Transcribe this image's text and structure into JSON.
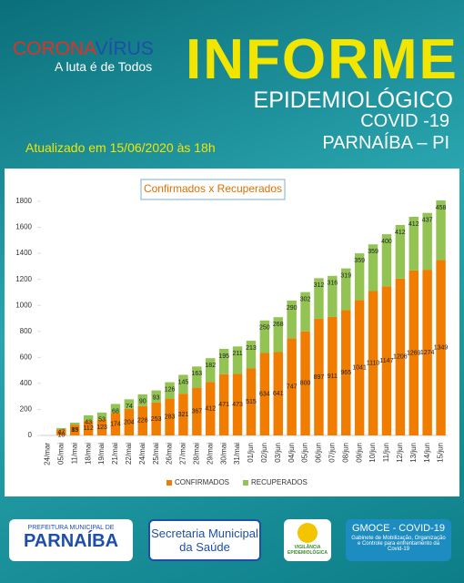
{
  "header": {
    "brand_parts": [
      "CORONA",
      "VÍRUS"
    ],
    "slogan": "A luta é de Todos",
    "title": "INFORME",
    "subtitle": "EPIDEMIOLÓGICO",
    "disease": "COVID -19",
    "place": "PARNAÍBA – PI",
    "updated": "Atualizado em 15/06/2020 às 18h"
  },
  "chart_data": {
    "type": "stacked_bar",
    "title": "Confirmados x Recuperados",
    "categories": [
      "24/mar",
      "05/mai",
      "11/mai",
      "18/mai",
      "19/mai",
      "21/mai",
      "22/mai",
      "24/mai",
      "25/mai",
      "26/mai",
      "27/mai",
      "28/mai",
      "29/mai",
      "30/mai",
      "31/mai",
      "01/jun",
      "02/jun",
      "03/jun",
      "04/jun",
      "05/jun",
      "06/jun",
      "07/jun",
      "08/jun",
      "09/jun",
      "10/jun",
      "11/jun",
      "12/jun",
      "13/jun",
      "14/jun",
      "15/jun"
    ],
    "series": [
      {
        "name": "CONFIRMADOS",
        "color": "#f07c00",
        "values": [
          null,
          47,
          83,
          112,
          123,
          174,
          204,
          226,
          253,
          283,
          321,
          367,
          412,
          471,
          473,
          515,
          634,
          641,
          747,
          800,
          897,
          911,
          965,
          1041,
          1110,
          1147,
          1206,
          1269,
          1274,
          1349
        ]
      },
      {
        "name": "RECUPERADOS",
        "color": "#92c353",
        "values": [
          null,
          10,
          15,
          43,
          53,
          68,
          74,
          90,
          93,
          126,
          145,
          163,
          182,
          195,
          211,
          213,
          250,
          268,
          290,
          302,
          312,
          316,
          319,
          359,
          359,
          400,
          412,
          412,
          437,
          458
        ]
      }
    ],
    "ylim": [
      0,
      1800
    ],
    "yticks": [
      0,
      200,
      400,
      600,
      800,
      1000,
      1200,
      1400,
      1600,
      1800
    ],
    "grid": false,
    "legend": "bottom"
  },
  "footer": {
    "pref_small": "PREFEITURA MUNICIPAL DE",
    "pref_big": "PARNAÍBA",
    "secretaria": "Secretaria Municipal da Saúde",
    "vigilancia": "VIGILÂNCIA EPIDEMIOLÓGICA",
    "gmoce_title": "GMOCE - COVID-19",
    "gmoce_text": "Gabinete de Mobilização, Organização e Controle para enfrentamento da Covid-19"
  }
}
